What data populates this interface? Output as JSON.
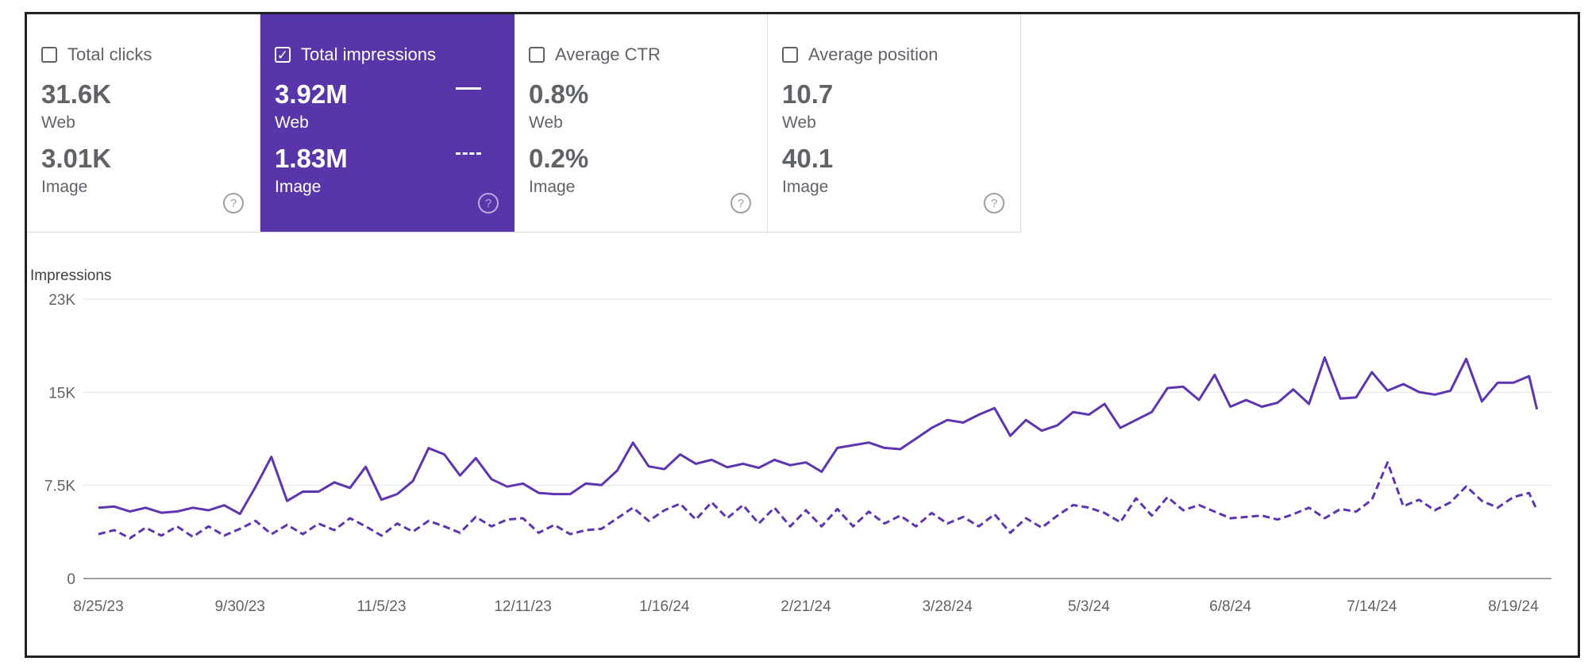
{
  "cards": [
    {
      "label": "Total clicks",
      "checked": false,
      "web_value": "31.6K",
      "web_label": "Web",
      "image_value": "3.01K",
      "image_label": "Image"
    },
    {
      "label": "Total impressions",
      "checked": true,
      "web_value": "3.92M",
      "web_label": "Web",
      "image_value": "1.83M",
      "image_label": "Image"
    },
    {
      "label": "Average CTR",
      "checked": false,
      "web_value": "0.8%",
      "web_label": "Web",
      "image_value": "0.2%",
      "image_label": "Image"
    },
    {
      "label": "Average position",
      "checked": false,
      "web_value": "10.7",
      "web_label": "Web",
      "image_value": "40.1",
      "image_label": "Image"
    }
  ],
  "colors": {
    "accent": "#5835a8",
    "line": "#5e35b1",
    "grid": "#e8eaed",
    "axis": "#9e9e9e"
  },
  "icons": {
    "checkbox": "checkbox-icon",
    "help": "help-circle-icon",
    "legend_solid": "solid-line-icon",
    "legend_dashed": "dashed-line-icon"
  },
  "chart_data": {
    "type": "line",
    "ylabel": "Impressions",
    "ylim": [
      0,
      22500
    ],
    "yticks": [
      {
        "value": 0,
        "label": "0"
      },
      {
        "value": 7500,
        "label": "7.5K"
      },
      {
        "value": 15000,
        "label": "15K"
      },
      {
        "value": 22500,
        "label": "23K"
      }
    ],
    "xticks": [
      "8/25/23",
      "9/30/23",
      "11/5/23",
      "12/11/23",
      "1/16/24",
      "2/21/24",
      "3/28/24",
      "5/3/24",
      "6/8/24",
      "7/14/24",
      "8/19/24"
    ],
    "grid": true,
    "x": [
      "2023-08-25",
      "2023-08-29",
      "2023-09-02",
      "2023-09-06",
      "2023-09-10",
      "2023-09-14",
      "2023-09-18",
      "2023-09-22",
      "2023-09-26",
      "2023-09-30",
      "2023-10-04",
      "2023-10-08",
      "2023-10-12",
      "2023-10-16",
      "2023-10-20",
      "2023-10-24",
      "2023-10-28",
      "2023-11-01",
      "2023-11-05",
      "2023-11-09",
      "2023-11-13",
      "2023-11-17",
      "2023-11-21",
      "2023-11-25",
      "2023-11-29",
      "2023-12-03",
      "2023-12-07",
      "2023-12-11",
      "2023-12-15",
      "2023-12-19",
      "2023-12-23",
      "2023-12-27",
      "2023-12-31",
      "2024-01-04",
      "2024-01-08",
      "2024-01-12",
      "2024-01-16",
      "2024-01-20",
      "2024-01-24",
      "2024-01-28",
      "2024-02-01",
      "2024-02-05",
      "2024-02-09",
      "2024-02-13",
      "2024-02-17",
      "2024-02-21",
      "2024-02-25",
      "2024-02-29",
      "2024-03-04",
      "2024-03-08",
      "2024-03-12",
      "2024-03-16",
      "2024-03-20",
      "2024-03-24",
      "2024-03-28",
      "2024-04-01",
      "2024-04-05",
      "2024-04-09",
      "2024-04-13",
      "2024-04-17",
      "2024-04-21",
      "2024-04-25",
      "2024-04-29",
      "2024-05-03",
      "2024-05-07",
      "2024-05-11",
      "2024-05-15",
      "2024-05-19",
      "2024-05-23",
      "2024-05-27",
      "2024-05-31",
      "2024-06-04",
      "2024-06-08",
      "2024-06-12",
      "2024-06-16",
      "2024-06-20",
      "2024-06-24",
      "2024-06-28",
      "2024-07-02",
      "2024-07-06",
      "2024-07-10",
      "2024-07-14",
      "2024-07-18",
      "2024-07-22",
      "2024-07-26",
      "2024-07-30",
      "2024-08-03",
      "2024-08-07",
      "2024-08-11",
      "2024-08-15",
      "2024-08-19",
      "2024-08-23",
      "2024-08-25"
    ],
    "series": [
      {
        "name": "Web",
        "style": "solid",
        "values": [
          5700,
          5800,
          5400,
          5700,
          5300,
          5400,
          5700,
          5500,
          5900,
          5200,
          7400,
          9800,
          6250,
          7000,
          7000,
          7750,
          7300,
          9000,
          6350,
          6800,
          7850,
          10500,
          10000,
          8300,
          9700,
          8000,
          7400,
          7650,
          6900,
          6800,
          6800,
          7650,
          7530,
          8700,
          10950,
          9030,
          8810,
          10000,
          9240,
          9560,
          8960,
          9240,
          8920,
          9560,
          9130,
          9350,
          8600,
          10520,
          10740,
          10950,
          10520,
          10420,
          11270,
          12130,
          12770,
          12560,
          13200,
          13730,
          11490,
          12770,
          11910,
          12340,
          13410,
          13200,
          14060,
          12130,
          12770,
          13410,
          15340,
          15450,
          14380,
          16410,
          13840,
          14380,
          13840,
          14160,
          15230,
          14060,
          17800,
          14490,
          14590,
          16620,
          15130,
          15660,
          15020,
          14810,
          15130,
          17690,
          14270,
          15770,
          15770,
          16300,
          13630
        ]
      },
      {
        "name": "Image",
        "style": "dashed",
        "values": [
          3570,
          3900,
          3250,
          4100,
          3460,
          4200,
          3360,
          4200,
          3460,
          4000,
          4640,
          3570,
          4320,
          3570,
          4430,
          3900,
          4860,
          4200,
          3460,
          4430,
          3780,
          4640,
          4200,
          3680,
          4960,
          4200,
          4750,
          4860,
          3680,
          4320,
          3570,
          3900,
          4000,
          4860,
          5710,
          4640,
          5500,
          6030,
          4750,
          6140,
          4860,
          5920,
          4430,
          5710,
          4200,
          5500,
          4200,
          5600,
          4200,
          5390,
          4430,
          5070,
          4200,
          5280,
          4430,
          4960,
          4200,
          5180,
          3680,
          4860,
          4100,
          5070,
          5920,
          5710,
          5280,
          4530,
          6460,
          5070,
          6560,
          5500,
          5920,
          5390,
          4860,
          4960,
          5070,
          4750,
          5180,
          5710,
          4860,
          5600,
          5390,
          6350,
          9350,
          5820,
          6350,
          5500,
          6140,
          7420,
          6250,
          5710,
          6560,
          6890,
          5500
        ]
      }
    ]
  }
}
